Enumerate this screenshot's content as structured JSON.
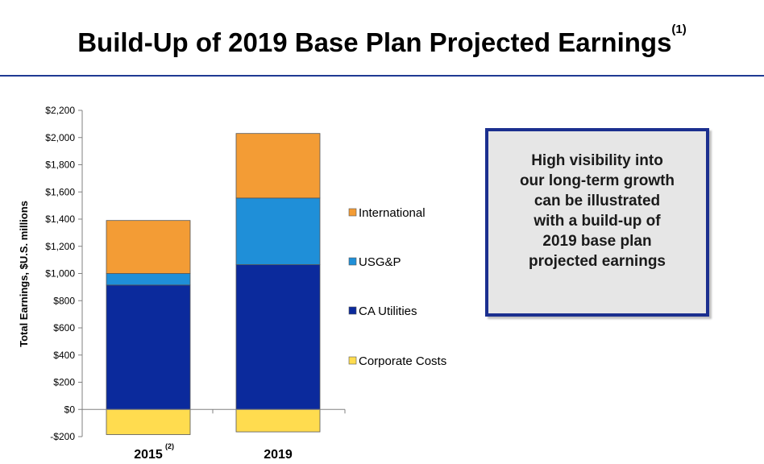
{
  "slide": {
    "title": "Build-Up of 2019 Base Plan Projected Earnings",
    "title_footnote": "(1)",
    "callout_lines": [
      "High visibility into",
      "our long-term growth",
      "can be illustrated",
      "with a build-up of",
      "2019 base plan",
      "projected earnings"
    ]
  },
  "chart_data": {
    "type": "bar",
    "stacked": true,
    "ylabel": "Total Earnings, $U.S. millions",
    "ylim": [
      -200,
      2200
    ],
    "ytick_values": [
      -200,
      0,
      200,
      400,
      600,
      800,
      1000,
      1200,
      1400,
      1600,
      1800,
      2000,
      2200
    ],
    "ytick_labels": [
      "-$200",
      "$0",
      "$200",
      "$400",
      "$600",
      "$800",
      "$1,000",
      "$1,200",
      "$1,400",
      "$1,600",
      "$1,800",
      "$2,000",
      "$2,200"
    ],
    "categories": [
      "2015",
      "2019"
    ],
    "category_footnotes": [
      "(2)",
      ""
    ],
    "series": [
      {
        "name": "Corporate Costs",
        "color": "#ffdc4f",
        "values": [
          -185,
          -165
        ]
      },
      {
        "name": "CA Utilities",
        "color": "#0b2a9c",
        "values": [
          915,
          1065
        ]
      },
      {
        "name": "USG&P",
        "color": "#1f8fd8",
        "values": [
          85,
          490
        ]
      },
      {
        "name": "International",
        "color": "#f39c35",
        "values": [
          390,
          475
        ]
      }
    ],
    "legend_order": [
      "International",
      "USG&P",
      "CA Utilities",
      "Corporate Costs"
    ],
    "legend_position": "right"
  }
}
